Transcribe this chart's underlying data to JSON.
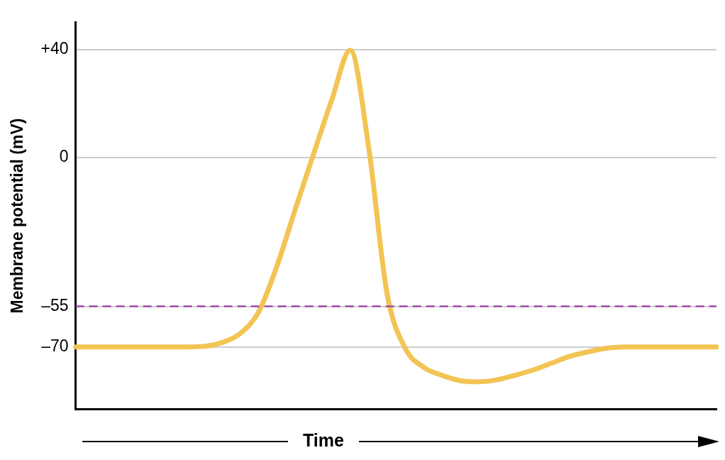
{
  "chart_data": {
    "type": "line",
    "xlabel": "Time",
    "ylabel": "Membrane potential (mV)",
    "categories": [
      null,
      null,
      null,
      null,
      null,
      null,
      null,
      null,
      null,
      null,
      null,
      null,
      null,
      null,
      null,
      null,
      null,
      null,
      null,
      null,
      null,
      null,
      null,
      null,
      null,
      null,
      null,
      null,
      null,
      null,
      null,
      null,
      null,
      null,
      null,
      null
    ],
    "series": [
      {
        "color": "#f2c453",
        "values": [
          -70,
          -70,
          -70,
          -70,
          -70,
          -70,
          -70,
          -69.8,
          -68.4,
          -65,
          -57,
          -40,
          -19,
          1.5,
          21.6,
          39.8,
          4,
          -50,
          -70.5,
          -77.5,
          -80.5,
          -82.5,
          -82.9,
          -82.2,
          -80.5,
          -78.5,
          -76,
          -73.5,
          -71.8,
          -70.5,
          -70,
          -70,
          -70,
          -70,
          -70,
          -70
        ]
      }
    ],
    "ylim": [
      -93,
      50
    ],
    "yticks": [
      {
        "value": 40,
        "label": "+40"
      },
      0,
      {
        "value": -55,
        "label": "–55"
      },
      {
        "value": -70,
        "label": "–70"
      }
    ],
    "ref_lines": [
      {
        "axis": "y",
        "value": -55,
        "color": "#a04ca8",
        "line_style": "dashed"
      }
    ],
    "grid": "y",
    "tick_labels": "y",
    "marker": "none",
    "line_style": "solid"
  }
}
